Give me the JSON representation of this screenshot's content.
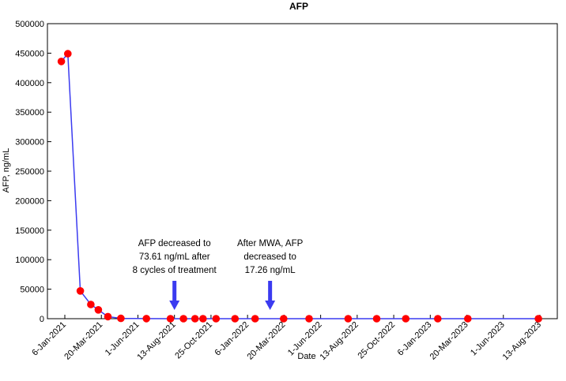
{
  "chart_data": {
    "type": "line",
    "title": "AFP",
    "xlabel": "Date",
    "ylabel": "AFP, ng/mL",
    "ylim": [
      0,
      500000
    ],
    "yticks": [
      0,
      50000,
      100000,
      150000,
      200000,
      250000,
      300000,
      350000,
      400000,
      450000,
      500000
    ],
    "ytick_labels": [
      "0",
      "50000",
      "100000",
      "150000",
      "200000",
      "250000",
      "300000",
      "350000",
      "400000",
      "450000",
      "500000"
    ],
    "x_tick_labels": [
      "6-Jan-2021",
      "20-Mar-2021",
      "1-Jun-2021",
      "13-Aug-2021",
      "25-Oct-2021",
      "6-Jan-2022",
      "20-Mar-2022",
      "1-Jun-2022",
      "13-Aug-2022",
      "25-Oct-2022",
      "6-Jan-2023",
      "20-Mar-2023",
      "1-Jun-2023",
      "13-Aug-2023"
    ],
    "x_day_range": [
      0,
      949
    ],
    "series": [
      {
        "name": "AFP",
        "line_color": "#3b3bf0",
        "marker_color": "#ff0000",
        "x_days": [
          -7,
          6,
          31,
          52,
          67,
          86,
          112,
          163,
          211,
          237,
          260,
          276,
          302,
          340,
          380,
          437,
          488,
          566,
          623,
          681,
          745,
          805,
          946
        ],
        "values": [
          436000,
          449000,
          47000,
          24000,
          15000,
          3500,
          500,
          74,
          60,
          50,
          45,
          40,
          17,
          15,
          14,
          13,
          13,
          12,
          12,
          13,
          14,
          15,
          16
        ]
      }
    ],
    "annotations": [
      {
        "lines": [
          "AFP decreased to",
          "73.61 ng/mL after",
          "8 cycles of treatment"
        ],
        "arrow_x_day": 219
      },
      {
        "lines": [
          "After MWA, AFP",
          "decreased to",
          "17.26 ng/mL"
        ],
        "arrow_x_day": 410
      }
    ]
  }
}
